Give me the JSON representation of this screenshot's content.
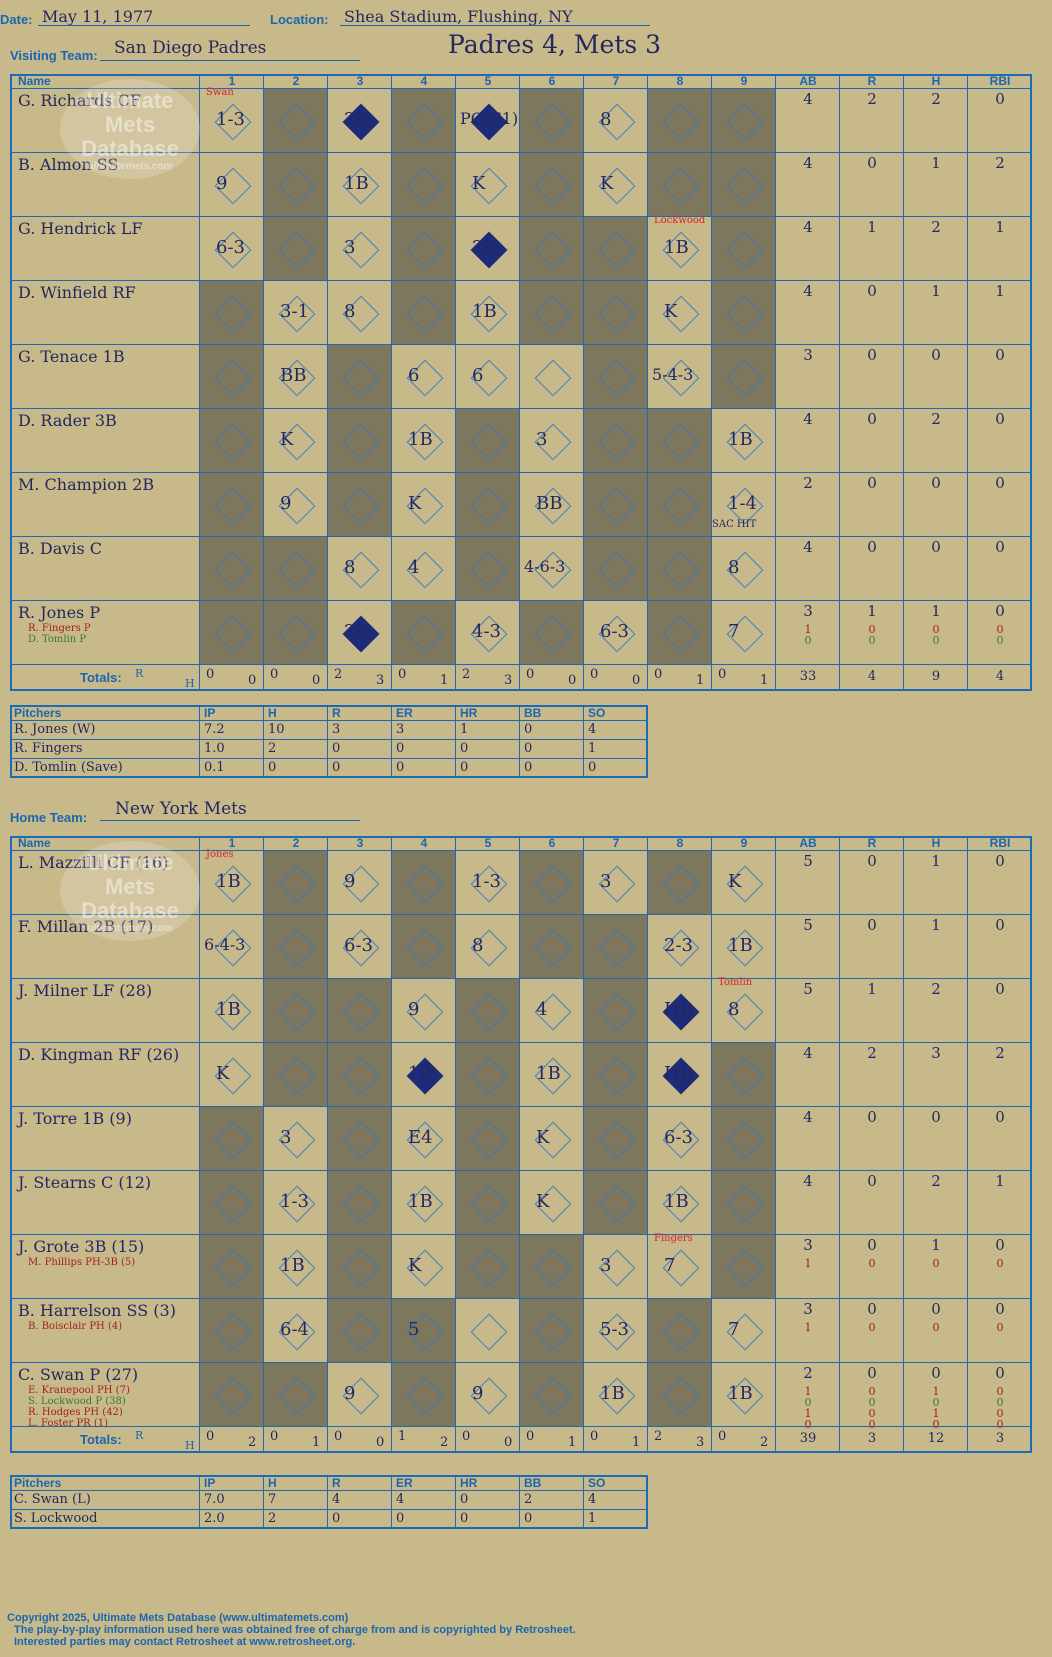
{
  "header": {
    "date_label": "Date:",
    "date": "May 11, 1977",
    "location_label": "Location:",
    "location": "Shea Stadium, Flushing, NY",
    "visiting_label": "Visiting Team:",
    "visiting_team": "San Diego Padres",
    "home_label": "Home Team:",
    "home_team": "New York Mets",
    "result": "Padres 4, Mets 3"
  },
  "columns": {
    "name": "Name",
    "innings": [
      "1",
      "2",
      "3",
      "4",
      "5",
      "6",
      "7",
      "8",
      "9"
    ],
    "stats": [
      "AB",
      "R",
      "H",
      "RBI"
    ]
  },
  "watermark": [
    "Ultimate",
    "Mets",
    "Database",
    "ultimatemets.com"
  ],
  "visitors": {
    "rows": [
      {
        "name": "G. Richards CF",
        "subs": [],
        "stats": [
          "4",
          "2",
          "2",
          "0"
        ],
        "gray": [
          2,
          4,
          6,
          8,
          9
        ]
      },
      {
        "name": "B. Almon SS",
        "subs": [],
        "stats": [
          "4",
          "0",
          "1",
          "2"
        ],
        "gray": [
          2,
          4,
          6,
          8,
          9
        ]
      },
      {
        "name": "G. Hendrick LF",
        "subs": [],
        "stats": [
          "4",
          "1",
          "2",
          "1"
        ],
        "gray": [
          2,
          4,
          6,
          7,
          9
        ]
      },
      {
        "name": "D. Winfield RF",
        "subs": [],
        "stats": [
          "4",
          "0",
          "1",
          "1"
        ],
        "gray": [
          1,
          4,
          6,
          7,
          9
        ]
      },
      {
        "name": "G. Tenace 1B",
        "subs": [],
        "stats": [
          "3",
          "0",
          "0",
          "0"
        ],
        "gray": [
          1,
          3,
          7,
          9
        ]
      },
      {
        "name": "D. Rader 3B",
        "subs": [],
        "stats": [
          "4",
          "0",
          "2",
          "0"
        ],
        "gray": [
          1,
          3,
          5,
          7,
          8
        ]
      },
      {
        "name": "M. Champion 2B",
        "subs": [],
        "stats": [
          "2",
          "0",
          "0",
          "0"
        ],
        "gray": [
          1,
          3,
          5,
          7,
          8
        ]
      },
      {
        "name": "B. Davis C",
        "subs": [],
        "stats": [
          "4",
          "0",
          "0",
          "0"
        ],
        "gray": [
          1,
          2,
          5,
          7,
          8
        ]
      },
      {
        "name": "R. Jones P",
        "subs": [
          {
            "name": "R. Fingers P",
            "stats": [
              "1",
              "0",
              "0",
              "0"
            ],
            "cls": "dred"
          },
          {
            "name": "D. Tomlin P",
            "stats": [
              "0",
              "0",
              "0",
              "0"
            ],
            "cls": "green"
          }
        ],
        "stats": [
          "3",
          "1",
          "1",
          "0"
        ],
        "gray": [
          1,
          2,
          4,
          6,
          8
        ]
      }
    ],
    "totals_label": "Totals:",
    "rh": [
      [
        "0",
        "0"
      ],
      [
        "0",
        "0"
      ],
      [
        "2",
        "3"
      ],
      [
        "0",
        "1"
      ],
      [
        "2",
        "3"
      ],
      [
        "0",
        "0"
      ],
      [
        "0",
        "0"
      ],
      [
        "0",
        "1"
      ],
      [
        "0",
        "1"
      ]
    ],
    "totals": [
      "33",
      "4",
      "9",
      "4"
    ],
    "pitchers": {
      "headers": [
        "Pitchers",
        "IP",
        "H",
        "R",
        "ER",
        "HR",
        "BB",
        "SO"
      ],
      "rows": [
        [
          "R. Jones (W)",
          "7.2",
          "10",
          "3",
          "3",
          "1",
          "0",
          "4"
        ],
        [
          "R. Fingers",
          "1.0",
          "2",
          "0",
          "0",
          "0",
          "0",
          "1"
        ],
        [
          "D. Tomlin (Save)",
          "0.1",
          "0",
          "0",
          "0",
          "0",
          "0",
          "0"
        ]
      ]
    }
  },
  "home": {
    "rows": [
      {
        "name": "L. Mazzilli CF (16)",
        "subs": [],
        "stats": [
          "5",
          "0",
          "1",
          "0"
        ],
        "gray": [
          2,
          4,
          6,
          8
        ]
      },
      {
        "name": "F. Millan 2B (17)",
        "subs": [],
        "stats": [
          "5",
          "0",
          "1",
          "0"
        ],
        "gray": [
          2,
          4,
          6,
          7
        ]
      },
      {
        "name": "J. Milner LF (28)",
        "subs": [],
        "stats": [
          "5",
          "1",
          "2",
          "0"
        ],
        "gray": [
          2,
          3,
          5,
          7
        ]
      },
      {
        "name": "D. Kingman RF (26)",
        "subs": [],
        "stats": [
          "4",
          "2",
          "3",
          "2"
        ],
        "gray": [
          2,
          3,
          5,
          7,
          9
        ]
      },
      {
        "name": "J. Torre 1B (9)",
        "subs": [],
        "stats": [
          "4",
          "0",
          "0",
          "0"
        ],
        "gray": [
          1,
          3,
          5,
          7,
          9
        ]
      },
      {
        "name": "J. Stearns C (12)",
        "subs": [],
        "stats": [
          "4",
          "0",
          "2",
          "1"
        ],
        "gray": [
          1,
          3,
          5,
          7,
          9
        ]
      },
      {
        "name": "J. Grote 3B (15)",
        "subs": [
          {
            "name": "M. Phillips PH-3B (5)",
            "stats": [
              "1",
              "0",
              "0",
              "0"
            ],
            "cls": "dred"
          }
        ],
        "stats": [
          "3",
          "0",
          "1",
          "0"
        ],
        "gray": [
          1,
          3,
          5,
          6,
          9
        ]
      },
      {
        "name": "B. Harrelson SS (3)",
        "subs": [
          {
            "name": "B. Boisclair PH (4)",
            "stats": [
              "1",
              "0",
              "0",
              "0"
            ],
            "cls": "dred"
          }
        ],
        "stats": [
          "3",
          "0",
          "0",
          "0"
        ],
        "gray": [
          1,
          3,
          4,
          6,
          8
        ]
      },
      {
        "name": "C. Swan P (27)",
        "subs": [
          {
            "name": "E. Kranepool PH (7)",
            "stats": [
              "1",
              "0",
              "1",
              "0"
            ],
            "cls": "dred"
          },
          {
            "name": "S. Lockwood P (38)",
            "stats": [
              "0",
              "0",
              "0",
              "0"
            ],
            "cls": "green"
          },
          {
            "name": "R. Hodges PH (42)",
            "stats": [
              "1",
              "0",
              "1",
              "0"
            ],
            "cls": "dred"
          },
          {
            "name": "L. Foster PR (1)",
            "stats": [
              "0",
              "0",
              "0",
              "0"
            ],
            "cls": "dred"
          }
        ],
        "stats": [
          "2",
          "0",
          "0",
          "0"
        ],
        "gray": [
          1,
          2,
          4,
          6,
          8
        ]
      }
    ],
    "totals_label": "Totals:",
    "rh": [
      [
        "0",
        "2"
      ],
      [
        "0",
        "1"
      ],
      [
        "0",
        "0"
      ],
      [
        "1",
        "2"
      ],
      [
        "0",
        "0"
      ],
      [
        "0",
        "1"
      ],
      [
        "0",
        "1"
      ],
      [
        "2",
        "3"
      ],
      [
        "0",
        "2"
      ]
    ],
    "totals": [
      "39",
      "3",
      "12",
      "3"
    ],
    "pitchers": {
      "headers": [
        "Pitchers",
        "IP",
        "H",
        "R",
        "ER",
        "HR",
        "BB",
        "SO"
      ],
      "rows": [
        [
          "C. Swan (L)",
          "7.0",
          "7",
          "4",
          "4",
          "0",
          "2",
          "4"
        ],
        [
          "S. Lockwood",
          "2.0",
          "2",
          "0",
          "0",
          "0",
          "0",
          "1"
        ]
      ]
    }
  },
  "plays": {
    "visitors": [
      [
        [
          "1-3",
          "",
          "Swan"
        ],
        [
          "",
          "",
          ""
        ],
        [
          "2B",
          "scored",
          ""
        ],
        [
          "",
          "",
          ""
        ],
        [
          "PO(E1)",
          "scored",
          ""
        ],
        [
          "",
          "",
          ""
        ],
        [
          "8",
          "",
          ""
        ],
        [
          "",
          "",
          ""
        ],
        [
          "",
          "",
          ""
        ]
      ],
      [
        [
          "9",
          "",
          ""
        ],
        [
          "",
          "",
          ""
        ],
        [
          "1B",
          "",
          ""
        ],
        [
          "",
          "",
          ""
        ],
        [
          "K",
          "",
          ""
        ],
        [
          "",
          "",
          ""
        ],
        [
          "K",
          "",
          ""
        ],
        [
          "",
          "",
          ""
        ],
        [
          "",
          "",
          ""
        ]
      ],
      [
        [
          "6-3",
          "",
          ""
        ],
        [
          "",
          "",
          ""
        ],
        [
          "3",
          "",
          ""
        ],
        [
          "",
          "",
          ""
        ],
        [
          "2B",
          "scored",
          ""
        ],
        [
          "",
          "",
          ""
        ],
        [
          "",
          "",
          ""
        ],
        [
          "1B",
          "",
          "Lockwood"
        ],
        [
          "",
          "",
          ""
        ]
      ],
      [
        [
          "",
          "",
          ""
        ],
        [
          "3-1",
          "",
          ""
        ],
        [
          "8",
          "",
          ""
        ],
        [
          "",
          "",
          ""
        ],
        [
          "1B",
          "",
          ""
        ],
        [
          "",
          "",
          ""
        ],
        [
          "",
          "",
          ""
        ],
        [
          "K",
          "",
          ""
        ],
        [
          "",
          "",
          ""
        ]
      ],
      [
        [
          "",
          "",
          ""
        ],
        [
          "BB",
          "",
          ""
        ],
        [
          "",
          "",
          ""
        ],
        [
          "6",
          "",
          ""
        ],
        [
          "6",
          "",
          ""
        ],
        [
          "",
          "",
          ""
        ],
        [
          "",
          "",
          ""
        ],
        [
          "5-4-3",
          "",
          ""
        ],
        [
          "",
          "",
          ""
        ]
      ],
      [
        [
          "",
          "",
          ""
        ],
        [
          "K",
          "",
          ""
        ],
        [
          "",
          "",
          ""
        ],
        [
          "1B",
          "",
          ""
        ],
        [
          "",
          "",
          ""
        ],
        [
          "3",
          "",
          ""
        ],
        [
          "",
          "",
          ""
        ],
        [
          "",
          "",
          ""
        ],
        [
          "1B",
          "",
          ""
        ]
      ],
      [
        [
          "",
          "",
          ""
        ],
        [
          "9",
          "",
          ""
        ],
        [
          "",
          "",
          ""
        ],
        [
          "K",
          "",
          ""
        ],
        [
          "",
          "",
          ""
        ],
        [
          "BB",
          "",
          ""
        ],
        [
          "",
          "",
          ""
        ],
        [
          "",
          "",
          ""
        ],
        [
          "1-4",
          "",
          ""
        ]
      ],
      [
        [
          "",
          "",
          ""
        ],
        [
          "",
          "",
          ""
        ],
        [
          "8",
          "",
          ""
        ],
        [
          "4",
          "",
          ""
        ],
        [
          "",
          "",
          ""
        ],
        [
          "4-6-3",
          "",
          ""
        ],
        [
          "",
          "",
          ""
        ],
        [
          "",
          "",
          ""
        ],
        [
          "8",
          "",
          ""
        ]
      ],
      [
        [
          "",
          "",
          ""
        ],
        [
          "",
          "",
          ""
        ],
        [
          "2B",
          "scored",
          ""
        ],
        [
          "",
          "",
          ""
        ],
        [
          "4-3",
          "",
          ""
        ],
        [
          "",
          "",
          ""
        ],
        [
          "6-3",
          "",
          ""
        ],
        [
          "",
          "",
          ""
        ],
        [
          "7",
          "",
          ""
        ]
      ]
    ],
    "home": [
      [
        [
          "1B",
          "",
          "Jones"
        ],
        [
          "",
          "",
          ""
        ],
        [
          "9",
          "",
          ""
        ],
        [
          "",
          "",
          ""
        ],
        [
          "1-3",
          "",
          ""
        ],
        [
          "",
          "",
          ""
        ],
        [
          "3",
          "",
          ""
        ],
        [
          "",
          "",
          ""
        ],
        [
          "K",
          "",
          ""
        ]
      ],
      [
        [
          "6-4-3",
          "",
          ""
        ],
        [
          "",
          "",
          ""
        ],
        [
          "6-3",
          "",
          ""
        ],
        [
          "",
          "",
          ""
        ],
        [
          "8",
          "",
          ""
        ],
        [
          "",
          "",
          ""
        ],
        [
          "",
          "",
          ""
        ],
        [
          "2-3",
          "",
          ""
        ],
        [
          "1B",
          "",
          ""
        ]
      ],
      [
        [
          "1B",
          "",
          ""
        ],
        [
          "",
          "",
          ""
        ],
        [
          "",
          "",
          ""
        ],
        [
          "9",
          "",
          ""
        ],
        [
          "",
          "",
          ""
        ],
        [
          "4",
          "",
          ""
        ],
        [
          "",
          "",
          ""
        ],
        [
          "HR",
          "scored",
          ""
        ],
        [
          "8",
          "",
          "Tomlin"
        ]
      ],
      [
        [
          "K",
          "",
          ""
        ],
        [
          "",
          "",
          ""
        ],
        [
          "",
          "",
          ""
        ],
        [
          "1B",
          "scored",
          ""
        ],
        [
          "",
          "",
          ""
        ],
        [
          "1B",
          "",
          ""
        ],
        [
          "",
          "",
          ""
        ],
        [
          "HR",
          "scored",
          ""
        ],
        [
          "",
          "",
          ""
        ]
      ],
      [
        [
          "",
          "",
          ""
        ],
        [
          "3",
          "",
          ""
        ],
        [
          "",
          "",
          ""
        ],
        [
          "E4",
          "",
          ""
        ],
        [
          "",
          "",
          ""
        ],
        [
          "K",
          "",
          ""
        ],
        [
          "",
          "",
          ""
        ],
        [
          "6-3",
          "",
          ""
        ],
        [
          "",
          "",
          ""
        ]
      ],
      [
        [
          "",
          "",
          ""
        ],
        [
          "1-3",
          "",
          ""
        ],
        [
          "",
          "",
          ""
        ],
        [
          "1B",
          "",
          ""
        ],
        [
          "",
          "",
          ""
        ],
        [
          "K",
          "",
          ""
        ],
        [
          "",
          "",
          ""
        ],
        [
          "1B",
          "",
          ""
        ],
        [
          "",
          "",
          ""
        ]
      ],
      [
        [
          "",
          "",
          ""
        ],
        [
          "1B",
          "",
          ""
        ],
        [
          "",
          "",
          ""
        ],
        [
          "K",
          "",
          ""
        ],
        [
          "",
          "",
          ""
        ],
        [
          "",
          "",
          ""
        ],
        [
          "3",
          "",
          ""
        ],
        [
          "7",
          "",
          "Fingers"
        ],
        [
          "",
          "",
          ""
        ]
      ],
      [
        [
          "",
          "",
          ""
        ],
        [
          "6-4",
          "",
          ""
        ],
        [
          "",
          "",
          ""
        ],
        [
          "5",
          "",
          ""
        ],
        [
          "",
          "",
          ""
        ],
        [
          "",
          "",
          ""
        ],
        [
          "5-3",
          "",
          ""
        ],
        [
          "",
          "",
          ""
        ],
        [
          "7",
          "",
          ""
        ]
      ],
      [
        [
          "",
          "",
          ""
        ],
        [
          "",
          "",
          ""
        ],
        [
          "9",
          "",
          ""
        ],
        [
          "",
          "",
          ""
        ],
        [
          "9",
          "",
          ""
        ],
        [
          "",
          "",
          ""
        ],
        [
          "1B",
          "",
          ""
        ],
        [
          "",
          "",
          ""
        ],
        [
          "1B",
          "",
          ""
        ]
      ]
    ],
    "notes": {
      "sac_hit": "SAC HIT"
    }
  },
  "footer": [
    "Copyright 2025, Ultimate Mets Database (www.ultimatemets.com)",
    "The play-by-play information used here was obtained free of charge from and is copyrighted by Retrosheet.",
    "Interested parties may contact Retrosheet at www.retrosheet.org."
  ]
}
